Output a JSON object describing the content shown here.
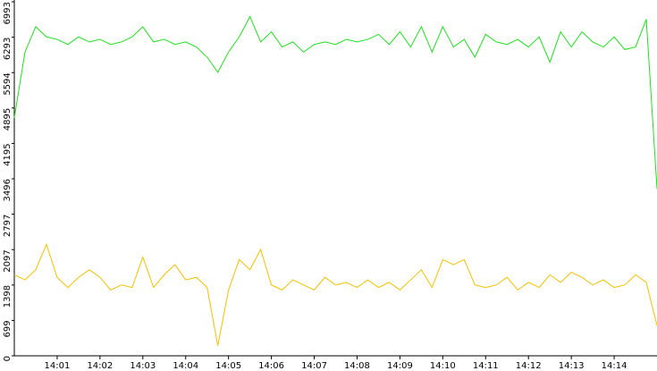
{
  "chart_data": {
    "type": "line",
    "x": [
      0,
      0.25,
      0.5,
      0.75,
      1,
      1.25,
      1.5,
      1.75,
      2,
      2.25,
      2.5,
      2.75,
      3,
      3.25,
      3.5,
      3.75,
      4,
      4.25,
      4.5,
      4.75,
      5,
      5.25,
      5.5,
      5.75,
      6,
      6.25,
      6.5,
      6.75,
      7,
      7.25,
      7.5,
      7.75,
      8,
      8.25,
      8.5,
      8.75,
      9,
      9.25,
      9.5,
      9.75,
      10,
      10.25,
      10.5,
      10.75,
      11,
      11.25,
      11.5,
      11.75,
      12,
      12.25,
      12.5,
      12.75,
      13,
      13.25,
      13.5,
      13.75,
      14,
      14.25,
      14.5,
      14.75,
      15
    ],
    "series": [
      {
        "color": "#22dd22",
        "values": [
          4700,
          6000,
          6500,
          6300,
          6250,
          6150,
          6300,
          6200,
          6250,
          6150,
          6200,
          6300,
          6500,
          6200,
          6250,
          6150,
          6200,
          6100,
          5900,
          5600,
          6000,
          6300,
          6700,
          6200,
          6400,
          6100,
          6200,
          6000,
          6150,
          6200,
          6150,
          6250,
          6200,
          6250,
          6350,
          6150,
          6400,
          6100,
          6500,
          6000,
          6500,
          6100,
          6250,
          5900,
          6350,
          6200,
          6150,
          6250,
          6100,
          6300,
          5800,
          6400,
          6100,
          6400,
          6200,
          6100,
          6300,
          6050,
          6100,
          6650,
          3300
        ]
      },
      {
        "color": "#f0c000",
        "values": [
          1600,
          1500,
          1700,
          2200,
          1550,
          1350,
          1550,
          1700,
          1550,
          1300,
          1400,
          1350,
          1950,
          1350,
          1600,
          1800,
          1500,
          1550,
          1350,
          200,
          1300,
          1900,
          1700,
          2100,
          1400,
          1300,
          1500,
          1400,
          1300,
          1550,
          1400,
          1450,
          1350,
          1500,
          1350,
          1450,
          1300,
          1500,
          1700,
          1350,
          1900,
          1800,
          1900,
          1400,
          1350,
          1400,
          1550,
          1300,
          1450,
          1350,
          1600,
          1450,
          1650,
          1550,
          1400,
          1500,
          1350,
          1400,
          1600,
          1450,
          600
        ]
      }
    ],
    "xlim": [
      0,
      15
    ],
    "xticks": [
      {
        "value": 1,
        "label": "14:01"
      },
      {
        "value": 2,
        "label": "14:02"
      },
      {
        "value": 3,
        "label": "14:03"
      },
      {
        "value": 4,
        "label": "14:04"
      },
      {
        "value": 5,
        "label": "14:05"
      },
      {
        "value": 6,
        "label": "14:06"
      },
      {
        "value": 7,
        "label": "14:07"
      },
      {
        "value": 8,
        "label": "14:08"
      },
      {
        "value": 9,
        "label": "14:09"
      },
      {
        "value": 10,
        "label": "14:10"
      },
      {
        "value": 11,
        "label": "14:11"
      },
      {
        "value": 12,
        "label": "14:12"
      },
      {
        "value": 13,
        "label": "14:13"
      },
      {
        "value": 14,
        "label": "14:14"
      }
    ],
    "ylim": [
      0,
      6993
    ],
    "yticks": [
      0,
      699,
      1398,
      2097,
      2797,
      3496,
      4195,
      4895,
      5594,
      6293,
      6993
    ]
  }
}
